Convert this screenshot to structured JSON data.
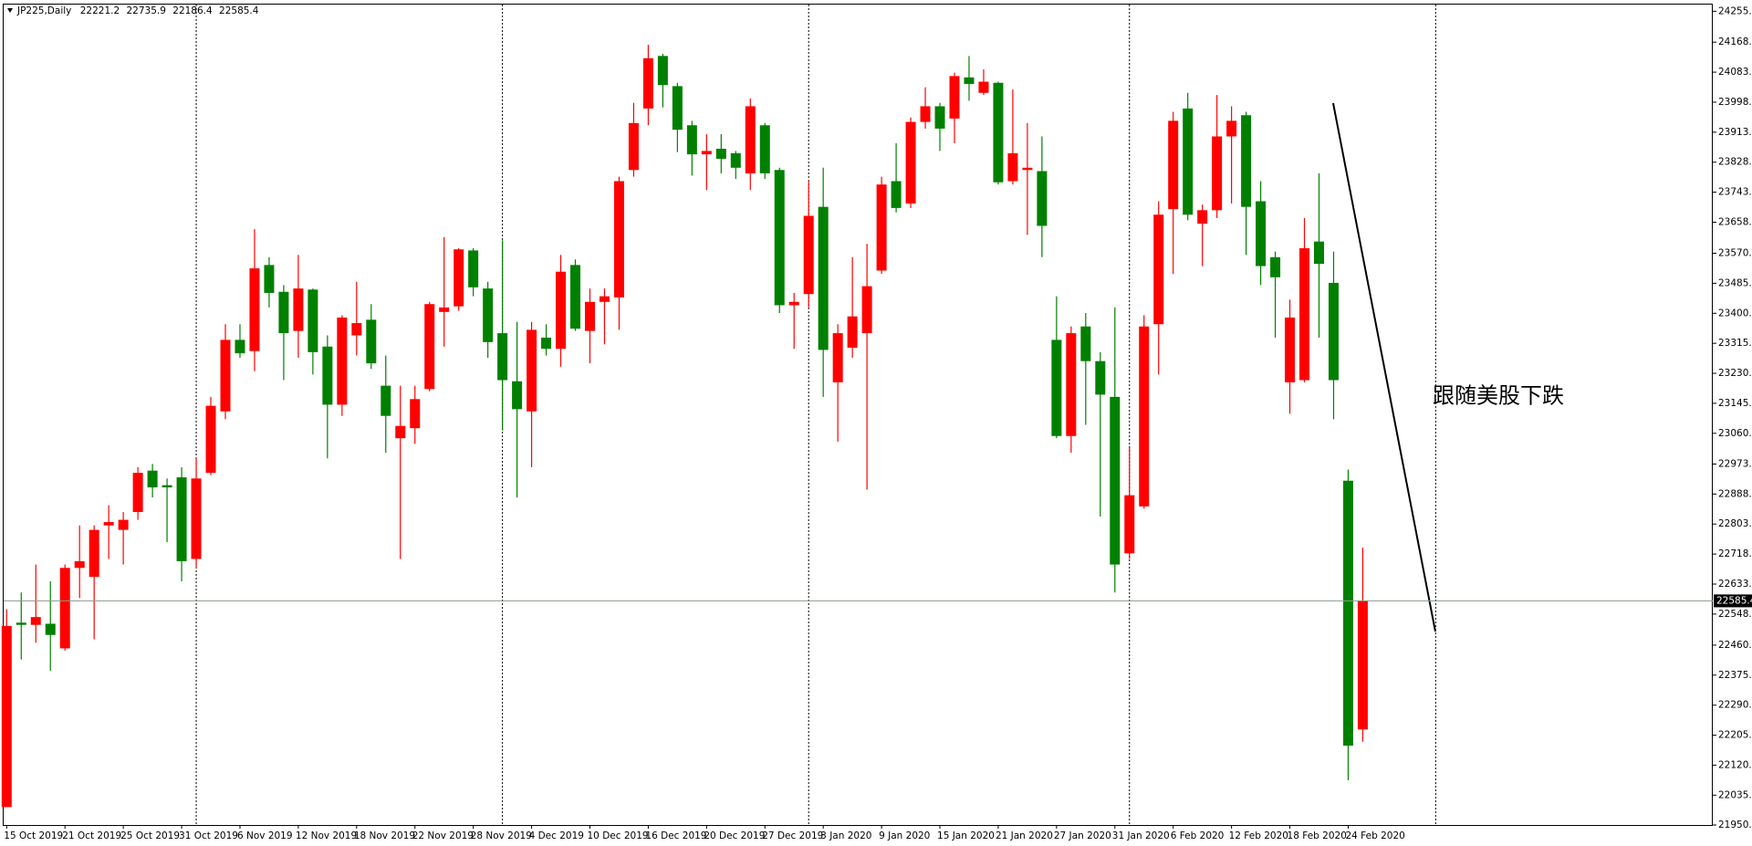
{
  "chart_data": {
    "type": "candlestick",
    "title": "JP225,Daily",
    "annotation": "跟随美股下跌",
    "up_color": "#ff0000",
    "down_color": "#008000",
    "categories": [
      "15 Oct 2019",
      null,
      null,
      null,
      "21 Oct 2019",
      null,
      null,
      null,
      "25 Oct 2019",
      null,
      null,
      null,
      "31 Oct 2019",
      null,
      null,
      null,
      "6 Nov 2019",
      null,
      null,
      null,
      "12 Nov 2019",
      null,
      null,
      null,
      "18 Nov 2019",
      null,
      null,
      null,
      "22 Nov 2019",
      null,
      null,
      null,
      "28 Nov 2019",
      null,
      null,
      null,
      "4 Dec 2019",
      null,
      null,
      null,
      "10 Dec 2019",
      null,
      null,
      null,
      "16 Dec 2019",
      null,
      null,
      null,
      "20 Dec 2019",
      null,
      null,
      null,
      "27 Dec 2019",
      null,
      null,
      null,
      "3 Jan 2020",
      null,
      null,
      null,
      "9 Jan 2020",
      null,
      null,
      null,
      "15 Jan 2020",
      null,
      null,
      null,
      "21 Jan 2020",
      null,
      null,
      null,
      "27 Jan 2020",
      null,
      null,
      null,
      "31 Jan 2020",
      null,
      null,
      null,
      "6 Feb 2020",
      null,
      null,
      null,
      "12 Feb 2020",
      null,
      null,
      null,
      "18 Feb 2020",
      null,
      null,
      null,
      "24 Feb 2020",
      null
    ],
    "open": [
      22001.3,
      22523.7,
      22517.4,
      22520.6,
      22450.9,
      22678.8,
      22653.5,
      22799.1,
      22786.5,
      22837.1,
      22954.3,
      22913.1,
      22935.3,
      22704.2,
      22948.0,
      23122.1,
      23324.7,
      23293.0,
      23536.8,
      23460.8,
      23350.0,
      23467.2,
      23305.7,
      23141.1,
      23337.4,
      23381.7,
      23194.9,
      23046.1,
      23074.6,
      23185.4,
      23403.8,
      23419.7,
      23578.0,
      23470.3,
      23343.7,
      23207.5,
      23122.1,
      23331.0,
      23299.4,
      23536.8,
      23350.0,
      23432.3,
      23445.0,
      23805.9,
      23980.1,
      24128.9,
      24043.4,
      23932.6,
      23850.3,
      23866.1,
      23853.4,
      23796.4,
      23932.6,
      23805.9,
      23422.8,
      23454.5,
      23701.5,
      23204.4,
      23302.5,
      23343.7,
      23521.0,
      23774.3,
      23710.9,
      23942.1,
      23986.4,
      23951.6,
      24068.2,
      24024.4,
      24052.9,
      23774.3,
      23805.9,
      23802.7,
      23324.7,
      23052.4,
      23362.7,
      23264.5,
      23163.2,
      22720.0,
      22853.0,
      23369.0,
      23695.1,
      23980.1,
      23654.0,
      23692.0,
      23901.0,
      23961.1,
      23717.3,
      23559.0,
      23204.4,
      23210.7,
      23603.3,
      23486.2,
      22925.8,
      22221.2
    ],
    "high": [
      22561.7,
      22609.2,
      22688.3,
      22640.8,
      22688.3,
      22799.1,
      22799.1,
      22856.1,
      22837.1,
      22963.8,
      22973.3,
      22932.1,
      22963.8,
      22989.1,
      23163.2,
      23369.0,
      23369.0,
      23638.1,
      23559.0,
      23479.8,
      23565.3,
      23470.3,
      23337.4,
      23394.3,
      23489.3,
      23426.0,
      23280.4,
      23194.9,
      23194.9,
      23432.3,
      23616.0,
      23584.3,
      23584.3,
      23489.3,
      23606.5,
      23375.4,
      23375.4,
      23369.0,
      23565.3,
      23552.6,
      23470.3,
      23470.3,
      23786.9,
      23995.9,
      24160.5,
      24135.2,
      24052.9,
      23945.2,
      23907.2,
      23907.2,
      23859.8,
      24008.6,
      23938.9,
      23812.3,
      23457.7,
      23774.3,
      23812.3,
      23369.0,
      23559.0,
      23597.0,
      23786.9,
      23881.9,
      23954.7,
      24040.2,
      23995.9,
      24081.4,
      24128.9,
      24090.9,
      24056.0,
      24033.9,
      23938.9,
      23901.0,
      23448.2,
      23362.7,
      23400.7,
      23289.9,
      23416.5,
      23020.8,
      23394.3,
      23717.3,
      23970.6,
      24024.4,
      23707.8,
      24018.1,
      23986.4,
      23970.6,
      23774.3,
      23574.8,
      23438.7,
      23669.8,
      23796.4,
      23574.8,
      22957.4,
      22735.9
    ],
    "low": [
      22001.3,
      22419.2,
      22466.7,
      22387.6,
      22444.6,
      22593.4,
      22476.2,
      22704.2,
      22688.3,
      22815.0,
      22878.3,
      22751.7,
      22640.8,
      22678.8,
      22941.6,
      23099.9,
      23274.0,
      23236.0,
      23416.5,
      23210.7,
      23274.0,
      23226.6,
      22989.1,
      23109.4,
      23280.4,
      23242.4,
      23004.9,
      22704.2,
      23030.3,
      23179.1,
      23305.7,
      23407.0,
      23448.2,
      23274.0,
      23068.3,
      22878.3,
      22963.8,
      23280.4,
      23248.7,
      23350.0,
      23258.2,
      23312.0,
      23353.2,
      23786.9,
      23932.6,
      23983.2,
      23856.6,
      23790.1,
      23749.0,
      23796.4,
      23780.6,
      23749.0,
      23780.6,
      23400.7,
      23299.4,
      23416.5,
      23163.2,
      23036.6,
      23274.0,
      22900.5,
      23511.5,
      23685.6,
      23698.3,
      23923.1,
      23859.8,
      23881.9,
      24002.2,
      24018.1,
      23764.8,
      23764.8,
      23622.3,
      23559.0,
      23046.1,
      23004.9,
      23084.1,
      22824.4,
      22609.2,
      22704.2,
      22846.7,
      23226.6,
      23511.5,
      23663.5,
      23533.7,
      23669.8,
      23710.9,
      23565.3,
      23479.8,
      23331.0,
      23115.7,
      23204.4,
      23331.0,
      23099.9,
      22077.3,
      22186.4
    ],
    "close": [
      22514.2,
      22517.4,
      22539.5,
      22488.9,
      22678.8,
      22697.8,
      22786.5,
      22808.6,
      22815.0,
      22948.0,
      22906.8,
      22906.8,
      22697.8,
      22932.1,
      23137.9,
      23324.7,
      23286.7,
      23527.3,
      23457.7,
      23343.7,
      23470.3,
      23289.9,
      23141.1,
      23388.0,
      23372.2,
      23258.2,
      23109.4,
      23080.9,
      23156.9,
      23426.0,
      23416.5,
      23581.1,
      23473.5,
      23318.4,
      23210.7,
      23128.4,
      23353.2,
      23299.4,
      23517.8,
      23356.4,
      23432.3,
      23448.2,
      23774.3,
      23938.9,
      24122.5,
      24046.5,
      23919.9,
      23850.3,
      23859.8,
      23837.6,
      23812.3,
      23986.4,
      23796.4,
      23422.8,
      23432.3,
      23676.1,
      23296.2,
      23343.7,
      23391.2,
      23476.7,
      23764.8,
      23698.3,
      23942.1,
      23986.4,
      23923.1,
      24071.9,
      24049.7,
      24056.0,
      23771.1,
      23853.4,
      23812.3,
      23647.6,
      23052.4,
      23343.7,
      23264.5,
      23169.6,
      22688.3,
      22884.6,
      23362.7,
      23679.3,
      23945.2,
      23679.3,
      23692.0,
      23901.0,
      23945.2,
      23701.5,
      23533.7,
      23502.0,
      23388.0,
      23584.3,
      23540.0,
      23210.7,
      22175.4,
      22585.4
    ],
    "ylim": [
      21950.5,
      24274.5
    ],
    "yticks": [
      24255.5,
      {
        "value": 24168,
        "label": "24168.0"
      },
      {
        "value": 24083,
        "label": "24083.0"
      },
      {
        "value": 23998,
        "label": "23998.0"
      },
      {
        "value": 23913,
        "label": "23913.0"
      },
      {
        "value": 23828,
        "label": "23828.0"
      },
      {
        "value": 23743,
        "label": "23743.0"
      },
      {
        "value": 23658,
        "label": "23658.0"
      },
      {
        "value": 23570,
        "label": "23570.0"
      },
      {
        "value": 23485,
        "label": "23485.0"
      },
      {
        "value": 23400,
        "label": "23400.0"
      },
      {
        "value": 23315,
        "label": "23315.0"
      },
      {
        "value": 23230,
        "label": "23230.0"
      },
      {
        "value": 23145,
        "label": "23145.0"
      },
      {
        "value": 23060,
        "label": "23060.0"
      },
      {
        "value": 22973,
        "label": "22973.0"
      },
      {
        "value": 22888,
        "label": "22888.0"
      },
      {
        "value": 22803,
        "label": "22803.0"
      },
      {
        "value": 22718,
        "label": "22718.0"
      },
      {
        "value": 22633,
        "label": "22633.0"
      },
      {
        "value": 22548,
        "label": "22548.0"
      },
      {
        "value": 22460,
        "label": "22460.0"
      },
      {
        "value": 22375,
        "label": "22375.0"
      },
      {
        "value": 22290,
        "label": "22290.0"
      },
      {
        "value": 22205,
        "label": "22205.0"
      },
      {
        "value": 22120,
        "label": "22120.0"
      },
      {
        "value": 22035,
        "label": "22035.0"
      },
      21950.5
    ]
  }
}
